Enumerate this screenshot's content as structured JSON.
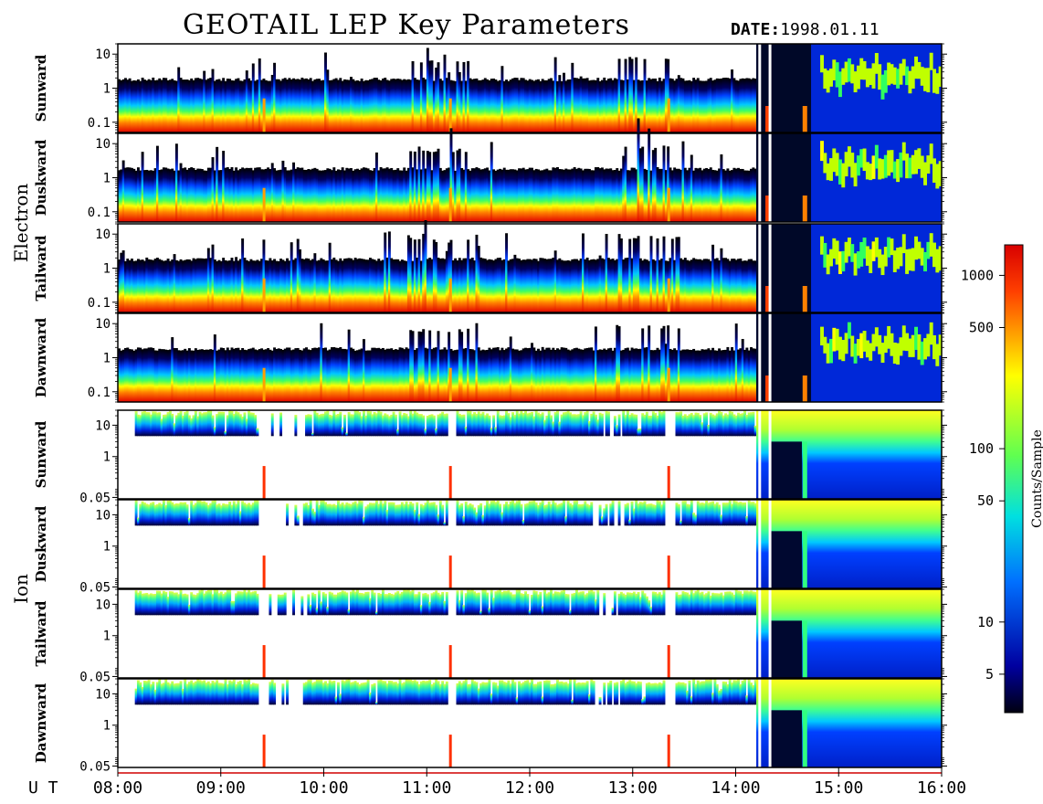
{
  "title": "GEOTAIL LEP Key Parameters",
  "date_label": "DATE:",
  "date_value": "1998.01.11",
  "colors": {
    "colormap": [
      "#000010",
      "#0000a0",
      "#0030ff",
      "#00a0ff",
      "#00e8c0",
      "#30ff60",
      "#c0ff00",
      "#ffff00",
      "#ffa000",
      "#ff3000",
      "#d00000"
    ],
    "frame": "#000000",
    "background": "#ffffff"
  },
  "chart_data": {
    "type": "heatmap",
    "x_axis": {
      "label": "U T",
      "range": [
        "08:00",
        "16:00"
      ],
      "tick_labels": [
        "08:00",
        "09:00",
        "10:00",
        "11:00",
        "12:00",
        "13:00",
        "14:00",
        "15:00",
        "16:00"
      ]
    },
    "colorbar": {
      "label": "Counts/Sample",
      "scale": "log",
      "range": [
        3,
        1500
      ],
      "tick_labels": [
        "1000",
        "500",
        "100",
        "50",
        "10",
        "5"
      ],
      "tick_values": [
        1000,
        500,
        100,
        50,
        10,
        5
      ]
    },
    "groups": [
      {
        "name": "Electron",
        "y_scale": "log",
        "y_range": [
          0.05,
          20
        ],
        "y_tick_labels": [
          "10",
          "1",
          "0.1"
        ],
        "y_tick_values": [
          10,
          1,
          0.1
        ],
        "panels": [
          {
            "name": "Sunward"
          },
          {
            "name": "Duskward"
          },
          {
            "name": "Tailward"
          },
          {
            "name": "Dawnward"
          }
        ]
      },
      {
        "name": "Ion",
        "y_scale": "log",
        "y_range": [
          0.045,
          30
        ],
        "y_tick_labels": [
          "10",
          "1",
          "0.05"
        ],
        "y_tick_values": [
          10,
          1,
          0.05
        ],
        "panels": [
          {
            "name": "Sunward"
          },
          {
            "name": "Duskward"
          },
          {
            "name": "Tailward"
          },
          {
            "name": "Dawnward"
          }
        ]
      }
    ]
  }
}
